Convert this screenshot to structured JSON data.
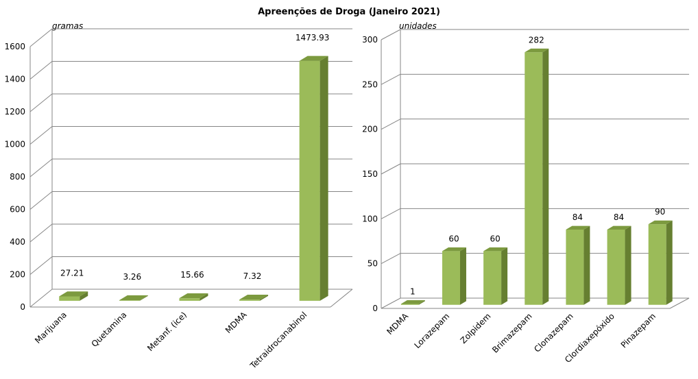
{
  "chart_data": [
    {
      "type": "bar",
      "title": "Apreenções de Droga (Janeiro 2021)",
      "ylabel": "gramas",
      "xlabel": "",
      "ylim": [
        0,
        1600
      ],
      "yticks": [
        0,
        200,
        400,
        600,
        800,
        1000,
        1200,
        1400,
        1600
      ],
      "categories": [
        "Marijuana",
        "Quetamina",
        "Metanf. (ice)",
        "MDMA",
        "Tetraidrocanabinol"
      ],
      "values": [
        27.21,
        3.26,
        15.66,
        7.32,
        1473.93
      ],
      "data_labels": [
        "27.21",
        "3.26",
        "15.66",
        "7.32",
        "1473.93"
      ],
      "grid": true,
      "bar_color": "#9bbb59",
      "bar_top_color": "#7c9a3f",
      "bar_side_color": "#667f31"
    },
    {
      "type": "bar",
      "ylabel": "unidades",
      "xlabel": "",
      "ylim": [
        0,
        300
      ],
      "yticks": [
        0,
        50,
        100,
        150,
        200,
        250,
        300
      ],
      "categories": [
        "MDMA",
        "Lorazepam",
        "Zolpidem",
        "Brimazepam",
        "Clonazepam",
        "Clordiaxepóxido",
        "Pinazepam"
      ],
      "values": [
        1,
        60,
        60,
        282,
        84,
        84,
        90
      ],
      "data_labels": [
        "1",
        "60",
        "60",
        "282",
        "84",
        "84",
        "90"
      ],
      "grid": true,
      "bar_color": "#9bbb59",
      "bar_top_color": "#7c9a3f",
      "bar_side_color": "#667f31"
    }
  ]
}
